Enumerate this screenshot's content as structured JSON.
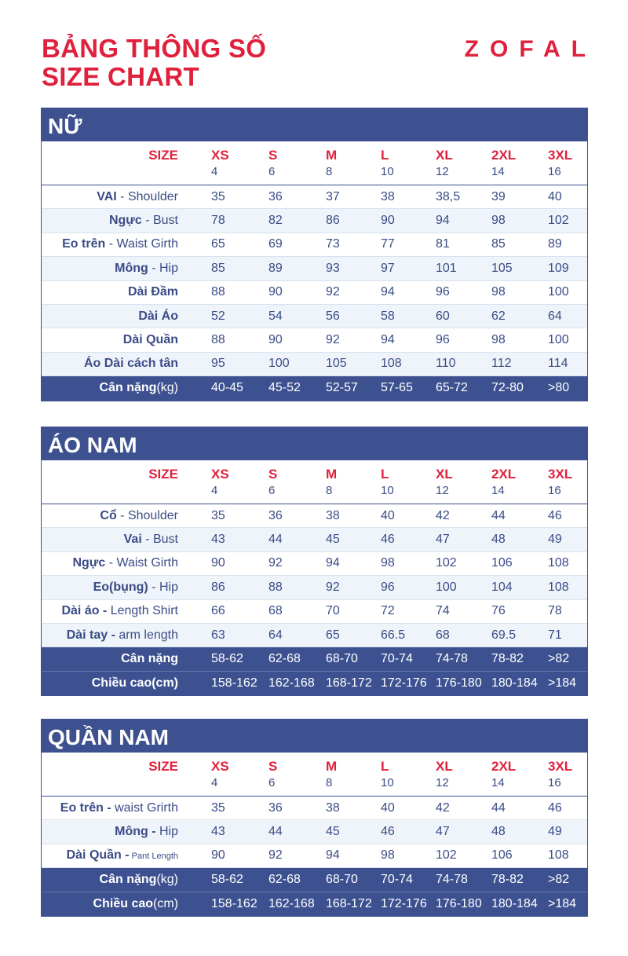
{
  "header": {
    "title_line1": "BẢNG THÔNG SỐ",
    "title_line2": "SIZE CHART",
    "brand": "ZOFAL"
  },
  "size_header": {
    "label": "SIZE",
    "sizes": [
      "XS",
      "S",
      "M",
      "L",
      "XL",
      "2XL",
      "3XL"
    ],
    "numbers": [
      "4",
      "6",
      "8",
      "10",
      "12",
      "14",
      "16"
    ]
  },
  "women": {
    "title": "NỮ",
    "rows": [
      {
        "bold": "VAI",
        "rest": " - Shoulder",
        "values": [
          "35",
          "36",
          "37",
          "38",
          "38,5",
          "39",
          "40"
        ]
      },
      {
        "bold": "Ngực",
        "rest": " - Bust",
        "values": [
          "78",
          "82",
          "86",
          "90",
          "94",
          "98",
          "102"
        ]
      },
      {
        "bold": "Eo trên",
        "rest": " - Waist Girth",
        "values": [
          "65",
          "69",
          "73",
          "77",
          "81",
          "85",
          "89"
        ]
      },
      {
        "bold": "Mông",
        "rest": " - Hip",
        "values": [
          "85",
          "89",
          "93",
          "97",
          "101",
          "105",
          "109"
        ]
      },
      {
        "bold": "Dài Đầm",
        "rest": "",
        "values": [
          "88",
          "90",
          "92",
          "94",
          "96",
          "98",
          "100"
        ]
      },
      {
        "bold": "Dài Áo",
        "rest": "",
        "values": [
          "52",
          "54",
          "56",
          "58",
          "60",
          "62",
          "64"
        ]
      },
      {
        "bold": "Dài Quần",
        "rest": "",
        "values": [
          "88",
          "90",
          "92",
          "94",
          "96",
          "98",
          "100"
        ]
      },
      {
        "bold": "Áo Dài cách tân",
        "rest": "",
        "values": [
          "95",
          "100",
          "105",
          "108",
          "110",
          "112",
          "114"
        ]
      }
    ],
    "dark_rows": [
      {
        "bold": "Cân nặng",
        "rest": "(kg)",
        "values": [
          "40-45",
          "45-52",
          "52-57",
          "57-65",
          "65-72",
          "72-80",
          ">80"
        ]
      }
    ]
  },
  "men_shirt": {
    "title": "ÁO NAM",
    "rows": [
      {
        "bold": "Cổ",
        "rest": " - Shoulder",
        "values": [
          "35",
          "36",
          "38",
          "40",
          "42",
          "44",
          "46"
        ]
      },
      {
        "bold": "Vai",
        "rest": " - Bust",
        "values": [
          "43",
          "44",
          "45",
          "46",
          "47",
          "48",
          "49"
        ]
      },
      {
        "bold": "Ngực",
        "rest": " - Waist Girth",
        "values": [
          "90",
          "92",
          "94",
          "98",
          "102",
          "106",
          "108"
        ]
      },
      {
        "bold": "Eo(bụng)",
        "rest": " - Hip",
        "values": [
          "86",
          "88",
          "92",
          "96",
          "100",
          "104",
          "108"
        ]
      },
      {
        "bold": "Dài áo -",
        "rest": " Length Shirt",
        "values": [
          "66",
          "68",
          "70",
          "72",
          "74",
          "76",
          "78"
        ]
      },
      {
        "bold": "Dài tay -",
        "rest": " arm length",
        "values": [
          "63",
          "64",
          "65",
          "66.5",
          "68",
          "69.5",
          "71"
        ]
      }
    ],
    "dark_rows": [
      {
        "bold": "Cân nặng",
        "rest": "",
        "values": [
          "58-62",
          "62-68",
          "68-70",
          "70-74",
          "74-78",
          "78-82",
          ">82"
        ]
      },
      {
        "bold": "Chiều cao(cm)",
        "rest": "",
        "values": [
          "158-162",
          "162-168",
          "168-172",
          "172-176",
          "176-180",
          "180-184",
          ">184"
        ]
      }
    ]
  },
  "men_pants": {
    "title": "QUẦN NAM",
    "rows": [
      {
        "bold": "Eo trên -",
        "rest": " waist Grirth",
        "values": [
          "35",
          "36",
          "38",
          "40",
          "42",
          "44",
          "46"
        ]
      },
      {
        "bold": "Mông -",
        "rest": " Hip",
        "values": [
          "43",
          "44",
          "45",
          "46",
          "47",
          "48",
          "49"
        ]
      },
      {
        "bold": "Dài Quần -",
        "rest": " Pant Length",
        "small": true,
        "values": [
          "90",
          "92",
          "94",
          "98",
          "102",
          "106",
          "108"
        ]
      }
    ],
    "dark_rows": [
      {
        "bold": "Cân nặng",
        "rest": "(kg)",
        "values": [
          "58-62",
          "62-68",
          "68-70",
          "70-74",
          "74-78",
          "78-82",
          ">82"
        ]
      },
      {
        "bold": "Chiều cao",
        "rest": "(cm)",
        "values": [
          "158-162",
          "162-168",
          "168-172",
          "172-176",
          "176-180",
          "180-184",
          ">184"
        ]
      }
    ]
  }
}
